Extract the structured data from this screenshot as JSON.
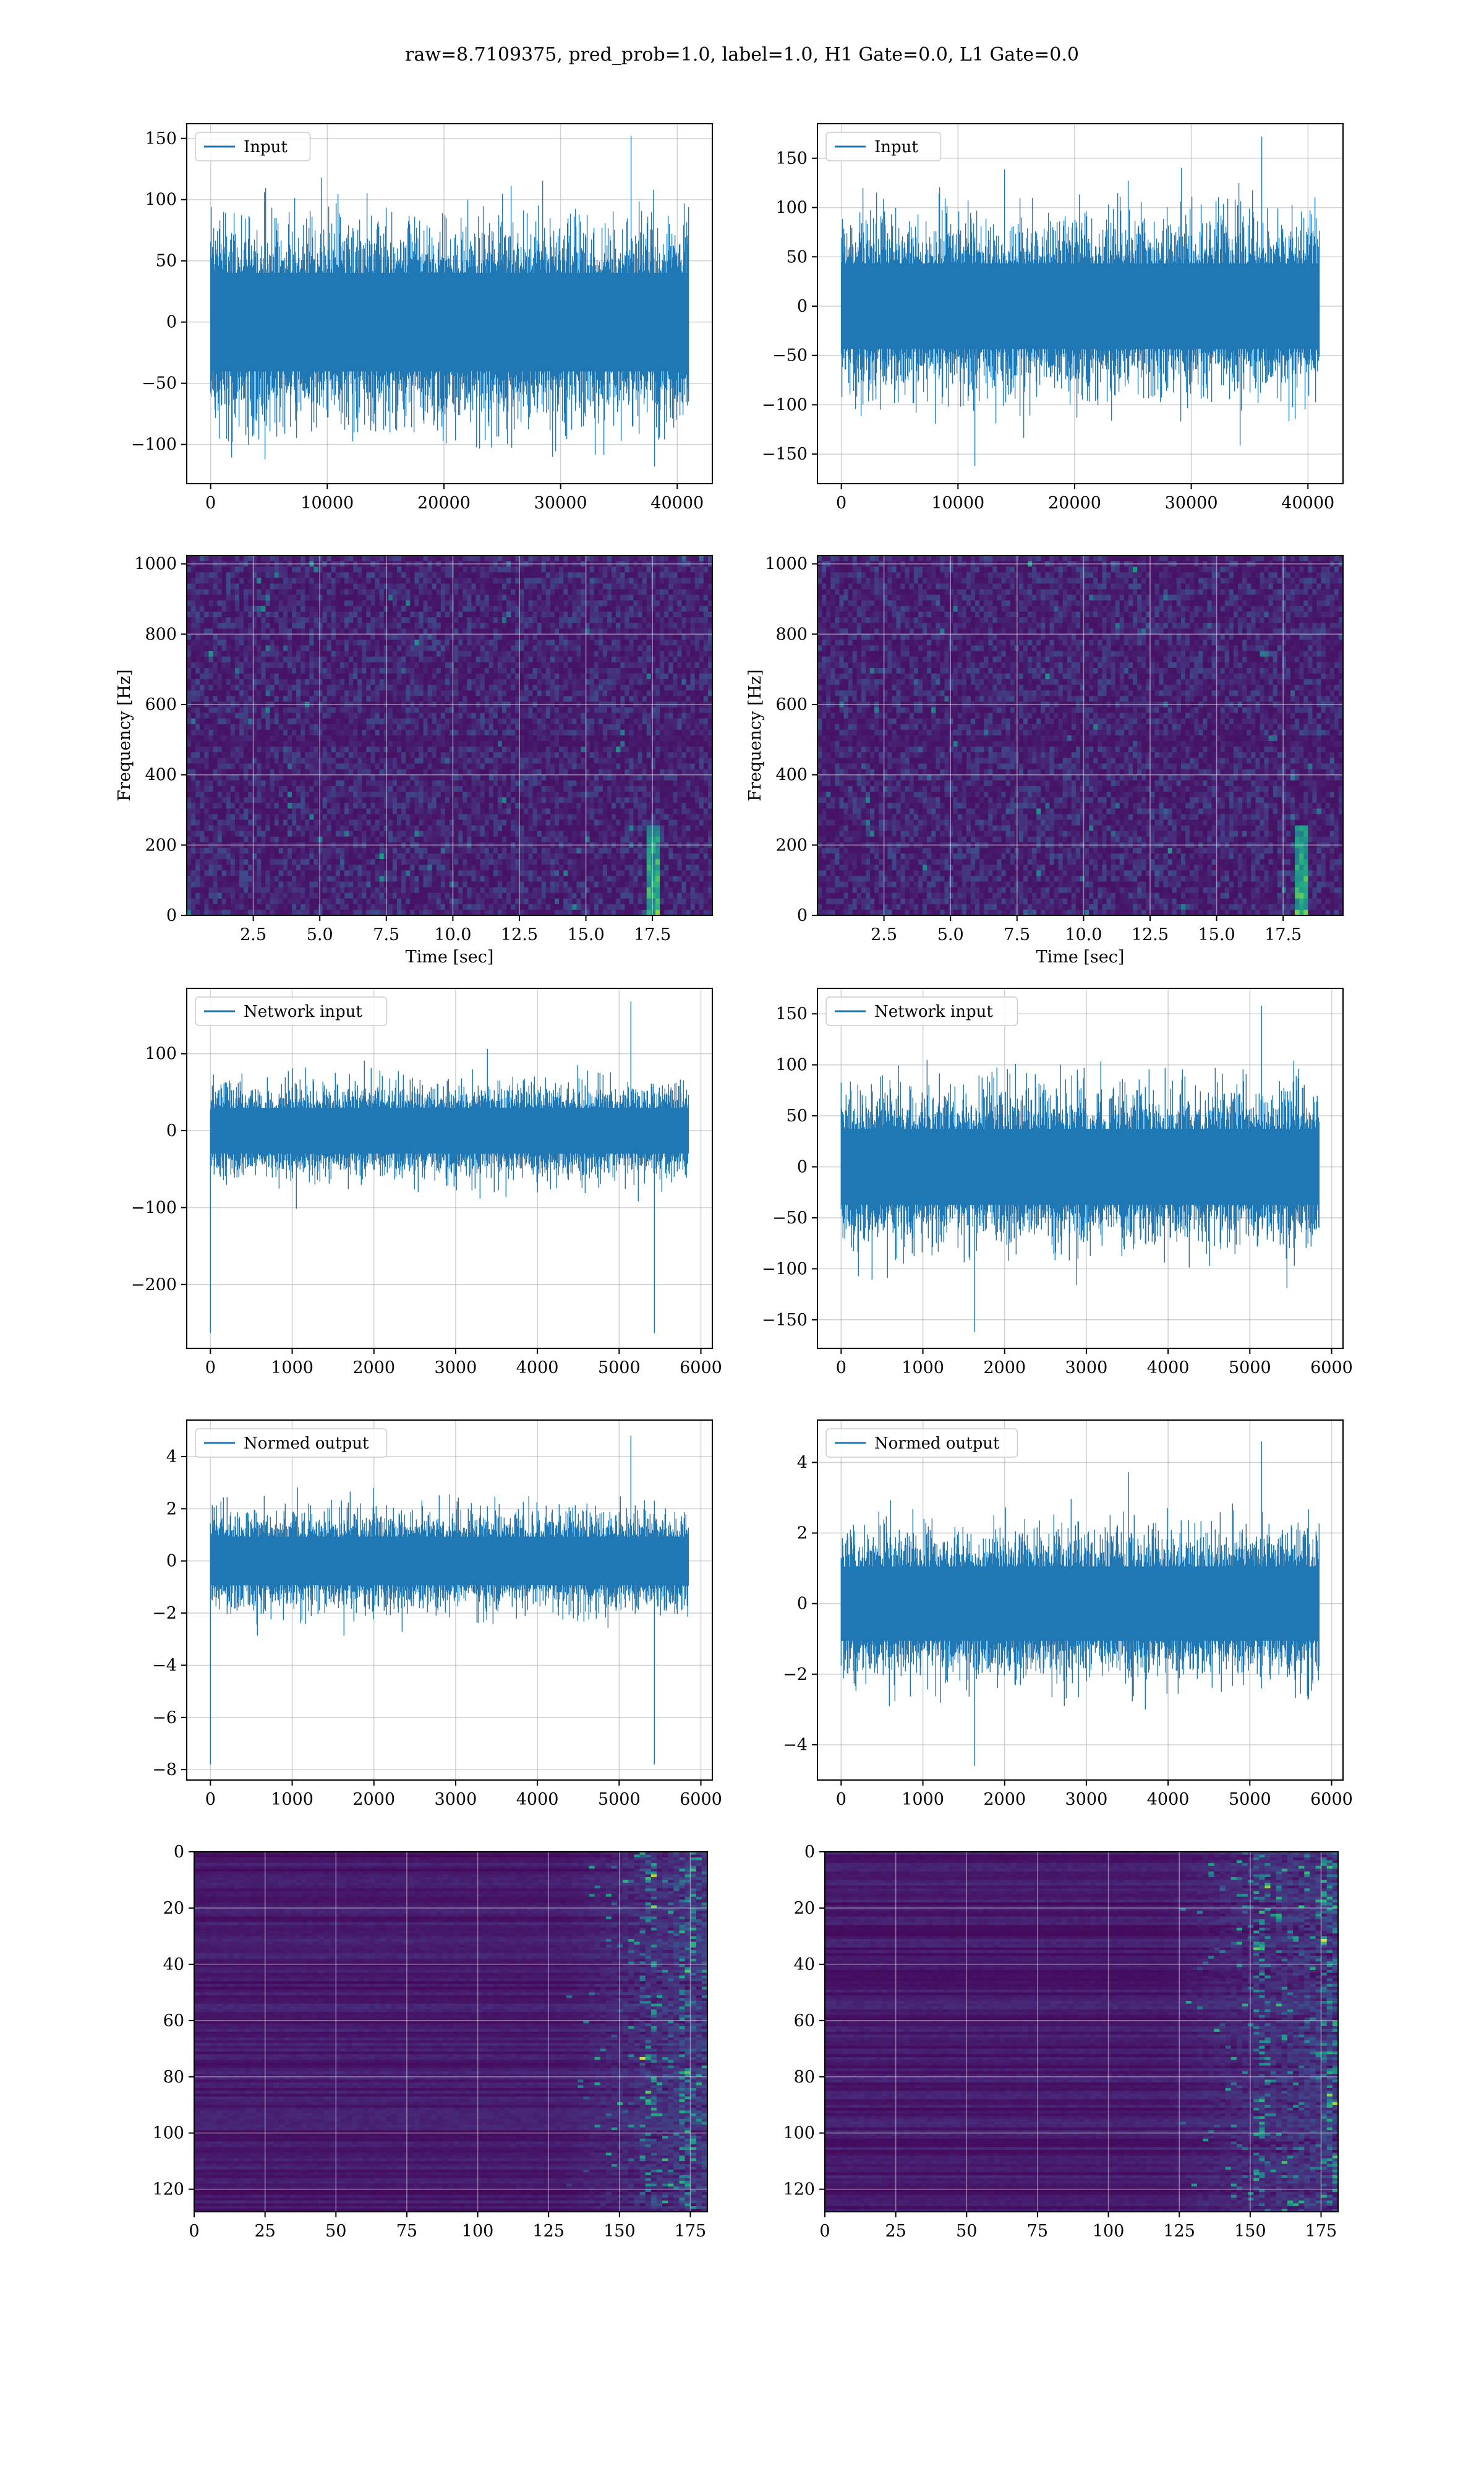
{
  "figure": {
    "suptitle": "raw=8.7109375, pred_prob=1.0, label=1.0, H1 Gate=0.0, L1 Gate=0.0"
  },
  "colors": {
    "line": "#1f77b4",
    "grid": "#b0b0b0",
    "axes_edge": "#000000",
    "viridis": [
      "#440154",
      "#482878",
      "#3e4989",
      "#31688e",
      "#26828e",
      "#1f9e89",
      "#35b779",
      "#6ece58",
      "#b5de2b",
      "#fde725"
    ]
  },
  "chart_data": [
    {
      "id": "h1-input",
      "type": "line",
      "series": [
        {
          "name": "Input"
        }
      ],
      "x": {
        "min": 0,
        "max": 40960
      },
      "xlim": [
        -2048,
        43008
      ],
      "ylim": [
        -132,
        162
      ],
      "xticks": [
        0,
        10000,
        20000,
        30000,
        40000
      ],
      "xticklabels": [
        "0",
        "10000",
        "20000",
        "30000",
        "40000"
      ],
      "yticks": [
        -100,
        -50,
        0,
        50,
        100,
        150
      ],
      "yticklabels": [
        "−100",
        "−50",
        "0",
        "50",
        "100",
        "150"
      ],
      "envelope": {
        "typical_half_amplitude": 65,
        "peak_max": 152,
        "peak_min": -118
      },
      "legend": "upper left",
      "grid": true,
      "xlabel": "",
      "ylabel": ""
    },
    {
      "id": "l1-input",
      "type": "line",
      "series": [
        {
          "name": "Input"
        }
      ],
      "x": {
        "min": 0,
        "max": 40960
      },
      "xlim": [
        -2048,
        43008
      ],
      "ylim": [
        -180,
        185
      ],
      "xticks": [
        0,
        10000,
        20000,
        30000,
        40000
      ],
      "xticklabels": [
        "0",
        "10000",
        "20000",
        "30000",
        "40000"
      ],
      "yticks": [
        -150,
        -100,
        -50,
        0,
        50,
        100,
        150
      ],
      "yticklabels": [
        "−150",
        "−100",
        "−50",
        "0",
        "50",
        "100",
        "150"
      ],
      "envelope": {
        "typical_half_amplitude": 70,
        "peak_max": 172,
        "peak_min": -162
      },
      "legend": "upper left",
      "grid": true,
      "xlabel": "",
      "ylabel": ""
    },
    {
      "id": "h1-spectrogram",
      "type": "heatmap",
      "xlim": [
        0,
        19.75
      ],
      "ylim": [
        0,
        1024
      ],
      "xticks": [
        2.5,
        5.0,
        7.5,
        10.0,
        12.5,
        15.0,
        17.5
      ],
      "xticklabels": [
        "2.5",
        "5.0",
        "7.5",
        "10.0",
        "12.5",
        "15.0",
        "17.5"
      ],
      "yticks": [
        0,
        200,
        400,
        600,
        800,
        1000
      ],
      "yticklabels": [
        "0",
        "200",
        "400",
        "600",
        "800",
        "1000"
      ],
      "xlabel": "Time [sec]",
      "ylabel": "Frequency [Hz]",
      "colormap": "viridis",
      "grid": true,
      "features": {
        "dark_band_hz": 500,
        "chirp_time_sec": 17.6,
        "chirp_max_hz": 260
      }
    },
    {
      "id": "l1-spectrogram",
      "type": "heatmap",
      "xlim": [
        0,
        19.75
      ],
      "ylim": [
        0,
        1024
      ],
      "xticks": [
        2.5,
        5.0,
        7.5,
        10.0,
        12.5,
        15.0,
        17.5
      ],
      "xticklabels": [
        "2.5",
        "5.0",
        "7.5",
        "10.0",
        "12.5",
        "15.0",
        "17.5"
      ],
      "yticks": [
        0,
        200,
        400,
        600,
        800,
        1000
      ],
      "yticklabels": [
        "0",
        "200",
        "400",
        "600",
        "800",
        "1000"
      ],
      "xlabel": "Time [sec]",
      "ylabel": "Frequency [Hz]",
      "colormap": "viridis",
      "grid": true,
      "features": {
        "dark_band_hz": 500,
        "chirp_time_sec": 18.2,
        "chirp_max_hz": 260
      }
    },
    {
      "id": "h1-network-input",
      "type": "line",
      "series": [
        {
          "name": "Network input"
        }
      ],
      "x": {
        "min": 0,
        "max": 5850
      },
      "xlim": [
        -290,
        6140
      ],
      "ylim": [
        -283,
        185
      ],
      "xticks": [
        0,
        1000,
        2000,
        3000,
        4000,
        5000,
        6000
      ],
      "xticklabels": [
        "0",
        "1000",
        "2000",
        "3000",
        "4000",
        "5000",
        "6000"
      ],
      "yticks": [
        -200,
        -100,
        0,
        100
      ],
      "yticklabels": [
        "−200",
        "−100",
        "0",
        "100"
      ],
      "envelope": {
        "typical_half_amplitude": 48,
        "peak_max": 168,
        "peak_min": -263
      },
      "legend": "upper left",
      "grid": true,
      "xlabel": "",
      "ylabel": ""
    },
    {
      "id": "l1-network-input",
      "type": "line",
      "series": [
        {
          "name": "Network input"
        }
      ],
      "x": {
        "min": 0,
        "max": 5850
      },
      "xlim": [
        -290,
        6140
      ],
      "ylim": [
        -178,
        175
      ],
      "xticks": [
        0,
        1000,
        2000,
        3000,
        4000,
        5000,
        6000
      ],
      "xticklabels": [
        "0",
        "1000",
        "2000",
        "3000",
        "4000",
        "5000",
        "6000"
      ],
      "yticks": [
        -150,
        -100,
        -50,
        0,
        50,
        100,
        150
      ],
      "yticklabels": [
        "−150",
        "−100",
        "−50",
        "0",
        "50",
        "100",
        "150"
      ],
      "envelope": {
        "typical_half_amplitude": 60,
        "peak_max": 158,
        "peak_min": -162
      },
      "legend": "upper left",
      "grid": true,
      "xlabel": "",
      "ylabel": ""
    },
    {
      "id": "h1-normed-output",
      "type": "line",
      "series": [
        {
          "name": "Normed output"
        }
      ],
      "x": {
        "min": 0,
        "max": 5850
      },
      "xlim": [
        -290,
        6140
      ],
      "ylim": [
        -8.4,
        5.4
      ],
      "xticks": [
        0,
        1000,
        2000,
        3000,
        4000,
        5000,
        6000
      ],
      "xticklabels": [
        "0",
        "1000",
        "2000",
        "3000",
        "4000",
        "5000",
        "6000"
      ],
      "yticks": [
        -8,
        -6,
        -4,
        -2,
        0,
        2,
        4
      ],
      "yticklabels": [
        "−8",
        "−6",
        "−4",
        "−2",
        "0",
        "2",
        "4"
      ],
      "envelope": {
        "typical_half_amplitude": 1.5,
        "peak_max": 4.8,
        "peak_min": -7.8
      },
      "legend": "upper left",
      "grid": true,
      "xlabel": "",
      "ylabel": ""
    },
    {
      "id": "l1-normed-output",
      "type": "line",
      "series": [
        {
          "name": "Normed output"
        }
      ],
      "x": {
        "min": 0,
        "max": 5850
      },
      "xlim": [
        -290,
        6140
      ],
      "ylim": [
        -5.0,
        5.2
      ],
      "xticks": [
        0,
        1000,
        2000,
        3000,
        4000,
        5000,
        6000
      ],
      "xticklabels": [
        "0",
        "1000",
        "2000",
        "3000",
        "4000",
        "5000",
        "6000"
      ],
      "yticks": [
        -4,
        -2,
        0,
        2,
        4
      ],
      "yticklabels": [
        "−4",
        "−2",
        "0",
        "2",
        "4"
      ],
      "envelope": {
        "typical_half_amplitude": 1.7,
        "peak_max": 4.6,
        "peak_min": -4.6
      },
      "legend": "upper left",
      "grid": true,
      "xlabel": "",
      "ylabel": ""
    },
    {
      "id": "h1-feature-map",
      "type": "heatmap",
      "xlim": [
        0,
        181
      ],
      "ylim_inverted": [
        128,
        0
      ],
      "xticks": [
        0,
        25,
        50,
        75,
        100,
        125,
        150,
        175
      ],
      "xticklabels": [
        "0",
        "25",
        "50",
        "75",
        "100",
        "125",
        "150",
        "175"
      ],
      "yticks": [
        0,
        20,
        40,
        60,
        80,
        100,
        120
      ],
      "yticklabels": [
        "0",
        "20",
        "40",
        "60",
        "80",
        "100",
        "120"
      ],
      "colormap": "viridis",
      "grid": true,
      "features": {
        "activity_onset_col": 130,
        "hot_cols": [
          160,
          175
        ]
      }
    },
    {
      "id": "l1-feature-map",
      "type": "heatmap",
      "xlim": [
        0,
        181
      ],
      "ylim_inverted": [
        128,
        0
      ],
      "xticks": [
        0,
        25,
        50,
        75,
        100,
        125,
        150,
        175
      ],
      "xticklabels": [
        "0",
        "25",
        "50",
        "75",
        "100",
        "125",
        "150",
        "175"
      ],
      "yticks": [
        0,
        20,
        40,
        60,
        80,
        100,
        120
      ],
      "yticklabels": [
        "0",
        "20",
        "40",
        "60",
        "80",
        "100",
        "120"
      ],
      "colormap": "viridis",
      "grid": true,
      "features": {
        "activity_onset_col": 120,
        "hot_cols": [
          155,
          178
        ]
      }
    }
  ]
}
